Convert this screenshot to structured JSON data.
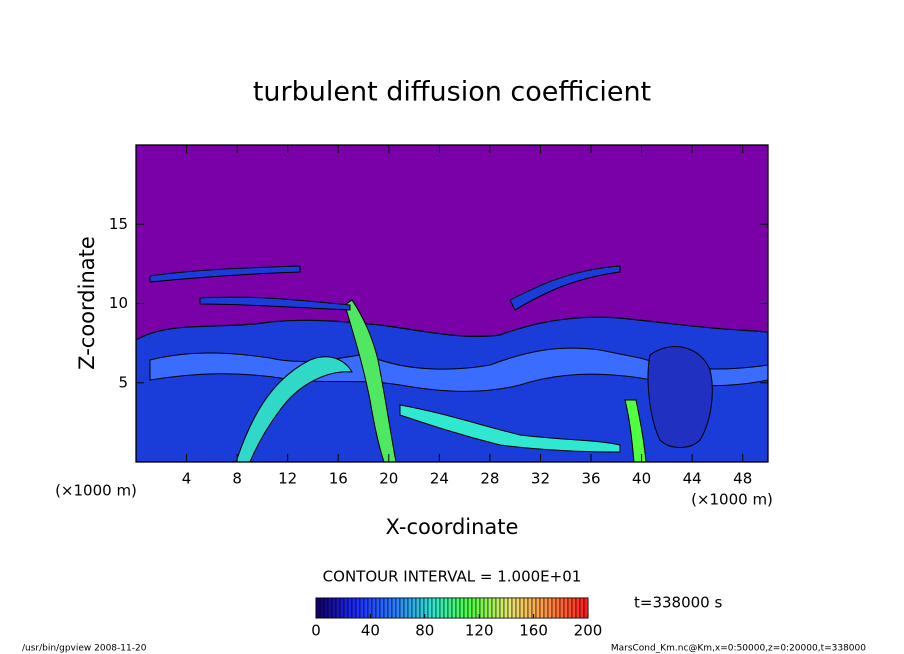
{
  "chart_data": {
    "type": "contour",
    "title": "turbulent diffusion coefficient",
    "x_label": "X-coordinate",
    "y_label": "Z-coordinate",
    "x_unit_label": "(×1000 m)",
    "xlim": [
      0,
      50
    ],
    "xticks": [
      4,
      8,
      12,
      16,
      20,
      24,
      28,
      32,
      36,
      40,
      44,
      48
    ],
    "ylim": [
      0,
      20
    ],
    "yticks": [
      5,
      10,
      15
    ],
    "contour_interval_label": "CONTOUR INTERVAL = 1.000E+01",
    "colorbar": {
      "lim": [
        0,
        200
      ],
      "ticks": [
        0,
        40,
        80,
        120,
        160,
        200
      ],
      "colors": [
        "#14006a",
        "#1e2cff",
        "#2a7cff",
        "#30e8d0",
        "#50ff40",
        "#e8e870",
        "#ff9040",
        "#ff1e1e"
      ]
    },
    "time_label": "t=338000 s",
    "footer_left": "/usr/bin/gpview   2008-11-20",
    "footer_right": "MarsCond_Km.nc@Km,x=0:50000,z=0:20000,t=338000"
  }
}
